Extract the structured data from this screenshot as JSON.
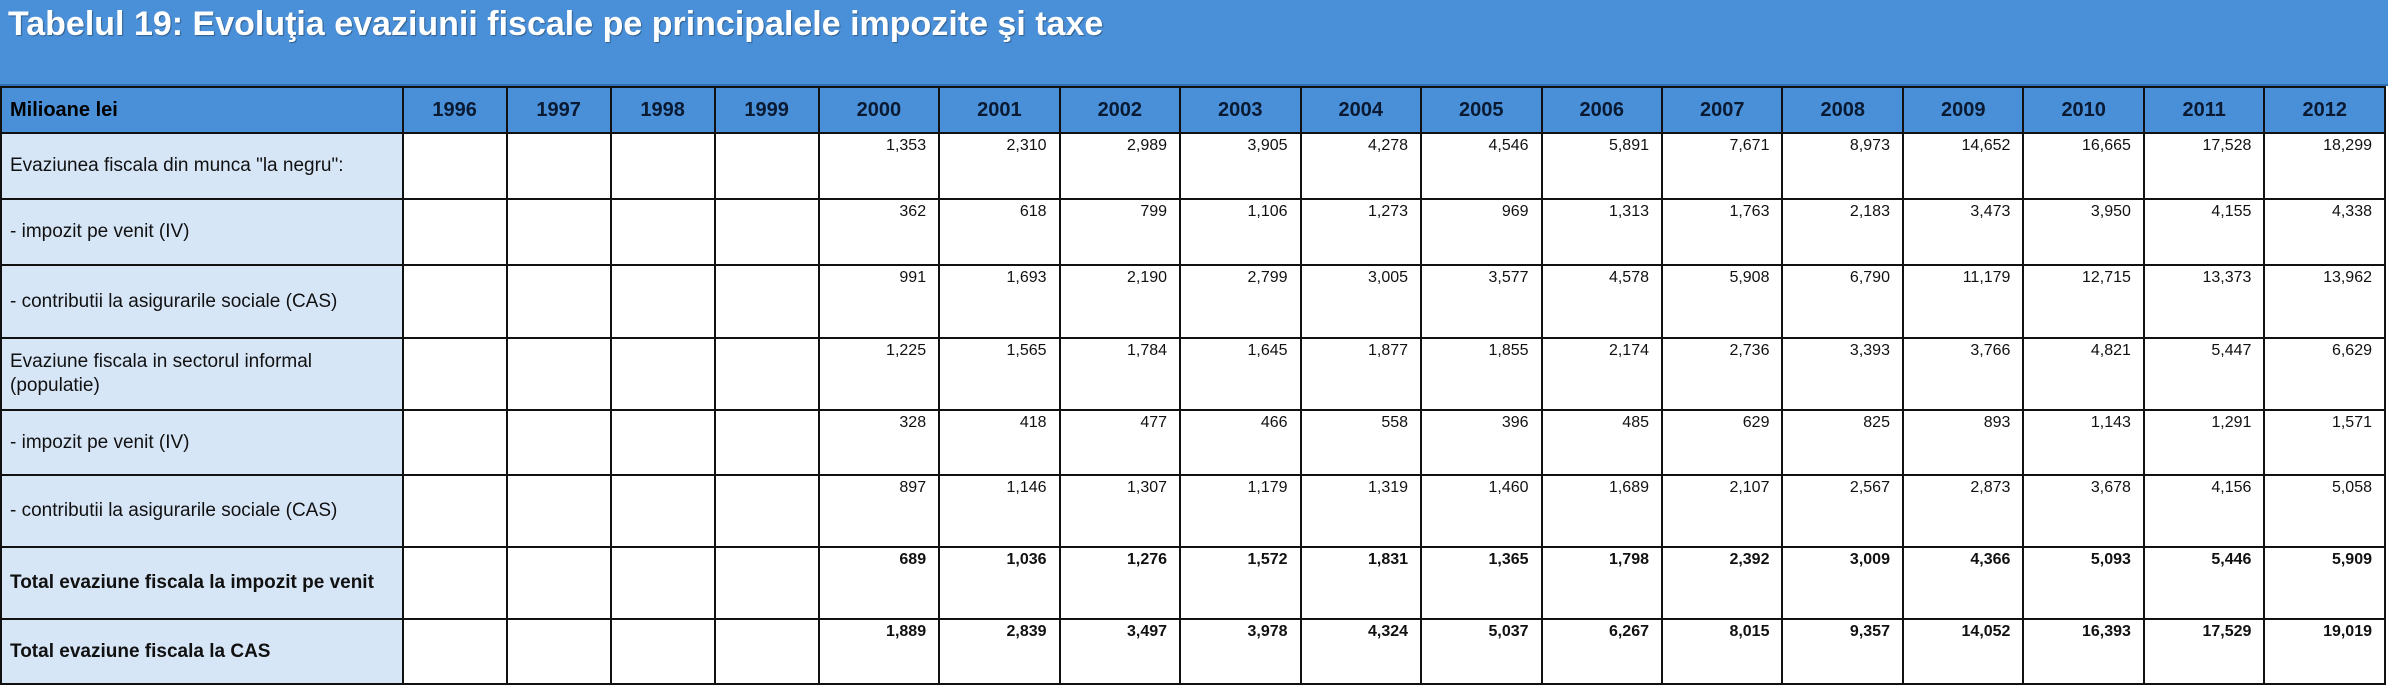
{
  "title": "Tabelul 19: Evoluţia evaziunii fiscale pe principalele impozite şi taxe",
  "header": {
    "label": "Milioane lei",
    "years": [
      "1996",
      "1997",
      "1998",
      "1999",
      "2000",
      "2001",
      "2002",
      "2003",
      "2004",
      "2005",
      "2006",
      "2007",
      "2008",
      "2009",
      "2010",
      "2011",
      "2012"
    ]
  },
  "rows": [
    {
      "label": "Evaziunea fiscala din munca \"la negru\":",
      "bold": false,
      "values": [
        "",
        "",
        "",
        "",
        "1,353",
        "2,310",
        "2,989",
        "3,905",
        "4,278",
        "4,546",
        "5,891",
        "7,671",
        "8,973",
        "14,652",
        "16,665",
        "17,528",
        "18,299"
      ]
    },
    {
      "label": "- impozit pe venit (IV)",
      "bold": false,
      "values": [
        "",
        "",
        "",
        "",
        "362",
        "618",
        "799",
        "1,106",
        "1,273",
        "969",
        "1,313",
        "1,763",
        "2,183",
        "3,473",
        "3,950",
        "4,155",
        "4,338"
      ]
    },
    {
      "label": "- contributii la asigurarile sociale (CAS)",
      "bold": false,
      "values": [
        "",
        "",
        "",
        "",
        "991",
        "1,693",
        "2,190",
        "2,799",
        "3,005",
        "3,577",
        "4,578",
        "5,908",
        "6,790",
        "11,179",
        "12,715",
        "13,373",
        "13,962"
      ]
    },
    {
      "label": "Evaziune fiscala in sectorul informal (populatie)",
      "bold": false,
      "values": [
        "",
        "",
        "",
        "",
        "1,225",
        "1,565",
        "1,784",
        "1,645",
        "1,877",
        "1,855",
        "2,174",
        "2,736",
        "3,393",
        "3,766",
        "4,821",
        "5,447",
        "6,629"
      ]
    },
    {
      "label": "- impozit pe venit (IV)",
      "bold": false,
      "values": [
        "",
        "",
        "",
        "",
        "328",
        "418",
        "477",
        "466",
        "558",
        "396",
        "485",
        "629",
        "825",
        "893",
        "1,143",
        "1,291",
        "1,571"
      ]
    },
    {
      "label": "- contributii la asigurarile sociale (CAS)",
      "bold": false,
      "values": [
        "",
        "",
        "",
        "",
        "897",
        "1,146",
        "1,307",
        "1,179",
        "1,319",
        "1,460",
        "1,689",
        "2,107",
        "2,567",
        "2,873",
        "3,678",
        "4,156",
        "5,058"
      ]
    },
    {
      "label": "Total evaziune fiscala la impozit pe venit",
      "bold": true,
      "values": [
        "",
        "",
        "",
        "",
        "689",
        "1,036",
        "1,276",
        "1,572",
        "1,831",
        "1,365",
        "1,798",
        "2,392",
        "3,009",
        "4,366",
        "5,093",
        "5,446",
        "5,909"
      ]
    },
    {
      "label": "Total evaziune fiscala la CAS",
      "bold": true,
      "values": [
        "",
        "",
        "",
        "",
        "1,889",
        "2,839",
        "3,497",
        "3,978",
        "4,324",
        "5,037",
        "6,267",
        "8,015",
        "9,357",
        "14,052",
        "16,393",
        "17,529",
        "19,019"
      ]
    }
  ]
}
